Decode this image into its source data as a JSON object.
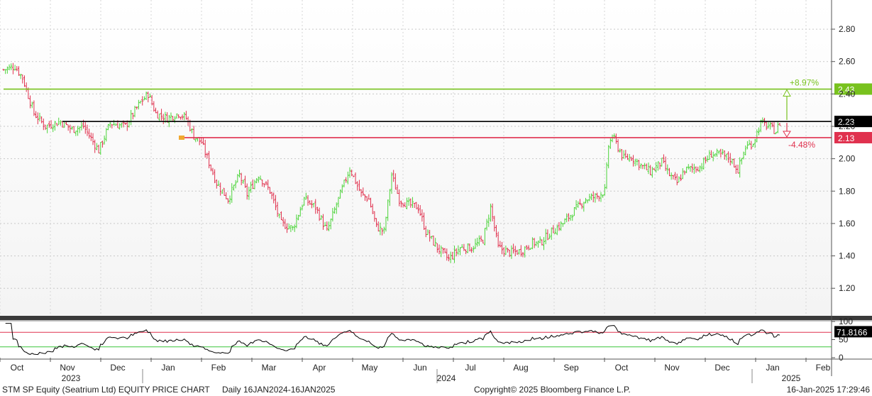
{
  "chart_data": {
    "type": "ohlc",
    "title": "STM SP Equity (Seatrium Ltd) EQUITY PRICE CHART",
    "period": "Daily 16JAN2024-16JAN2025",
    "copyright": "Copyright© 2025 Bloomberg Finance L.P.",
    "timestamp": "16-Jan-2025 17:29:46",
    "price_axis": {
      "ticks": [
        "2.80",
        "2.60",
        "2.40",
        "2.20",
        "2.00",
        "1.80",
        "1.60",
        "1.40",
        "1.20"
      ],
      "ylim": [
        1.03,
        2.98
      ]
    },
    "rsi_axis": {
      "ticks": [
        "100",
        "50",
        "0"
      ],
      "ylim": [
        0,
        100
      ],
      "upper": 70,
      "lower": 30,
      "last_label": "71.8166"
    },
    "x_axis": {
      "months": [
        "Oct",
        "Nov",
        "Dec",
        "Jan",
        "Feb",
        "Mar",
        "Apr",
        "May",
        "Jun",
        "Jul",
        "Aug",
        "Sep",
        "Oct",
        "Nov",
        "Dec",
        "Jan",
        "Feb"
      ],
      "years": [
        "2023",
        "2024",
        "2025"
      ]
    },
    "price_path": [
      [
        0,
        2.55
      ],
      [
        6,
        2.57
      ],
      [
        10,
        2.5
      ],
      [
        16,
        2.28
      ],
      [
        22,
        2.2
      ],
      [
        30,
        2.23
      ],
      [
        36,
        2.18
      ],
      [
        42,
        2.2
      ],
      [
        50,
        2.05
      ],
      [
        56,
        2.22
      ],
      [
        64,
        2.2
      ],
      [
        72,
        2.35
      ],
      [
        76,
        2.4
      ],
      [
        80,
        2.28
      ],
      [
        86,
        2.25
      ],
      [
        92,
        2.28
      ],
      [
        96,
        2.25
      ],
      [
        100,
        2.14
      ],
      [
        104,
        2.1
      ],
      [
        112,
        1.85
      ],
      [
        118,
        1.75
      ],
      [
        124,
        1.9
      ],
      [
        128,
        1.78
      ],
      [
        134,
        1.9
      ],
      [
        140,
        1.8
      ],
      [
        146,
        1.6
      ],
      [
        152,
        1.57
      ],
      [
        158,
        1.75
      ],
      [
        164,
        1.7
      ],
      [
        170,
        1.55
      ],
      [
        176,
        1.75
      ],
      [
        182,
        1.94
      ],
      [
        188,
        1.78
      ],
      [
        192,
        1.75
      ],
      [
        196,
        1.58
      ],
      [
        200,
        1.55
      ],
      [
        204,
        1.9
      ],
      [
        208,
        1.75
      ],
      [
        212,
        1.72
      ],
      [
        218,
        1.7
      ],
      [
        222,
        1.55
      ],
      [
        228,
        1.45
      ],
      [
        234,
        1.38
      ],
      [
        240,
        1.45
      ],
      [
        246,
        1.45
      ],
      [
        252,
        1.5
      ],
      [
        256,
        1.7
      ],
      [
        260,
        1.45
      ],
      [
        266,
        1.42
      ],
      [
        272,
        1.43
      ],
      [
        278,
        1.48
      ],
      [
        282,
        1.48
      ],
      [
        288,
        1.55
      ],
      [
        294,
        1.6
      ],
      [
        300,
        1.68
      ],
      [
        306,
        1.75
      ],
      [
        312,
        1.77
      ],
      [
        316,
        1.8
      ],
      [
        318,
        2.08
      ],
      [
        320,
        2.14
      ],
      [
        326,
        2.0
      ],
      [
        330,
        2.01
      ],
      [
        336,
        1.95
      ],
      [
        340,
        1.92
      ],
      [
        346,
        1.98
      ],
      [
        350,
        1.9
      ],
      [
        354,
        1.85
      ],
      [
        358,
        1.93
      ],
      [
        366,
        1.95
      ],
      [
        372,
        2.03
      ],
      [
        378,
        2.02
      ],
      [
        382,
        2.0
      ],
      [
        386,
        1.93
      ],
      [
        390,
        2.07
      ],
      [
        394,
        2.1
      ],
      [
        398,
        2.22
      ],
      [
        402,
        2.2
      ],
      [
        406,
        2.17
      ],
      [
        408,
        2.22
      ]
    ],
    "levels": [
      {
        "name": "upper",
        "value": 2.43,
        "label": "2.43",
        "color": "#78c21e",
        "pct_label": "+8.97%"
      },
      {
        "name": "current",
        "value": 2.23,
        "label": "2.23",
        "color": "#000000"
      },
      {
        "name": "lower",
        "value": 2.13,
        "label": "2.13",
        "color": "#e0314e",
        "pct_label": "-4.48%"
      }
    ],
    "colors": {
      "up": "#4cd43a",
      "down": "#e0314e",
      "rsi": "#000000",
      "rsi_upper": "#e0314e",
      "rsi_lower": "#3cc63c"
    }
  }
}
